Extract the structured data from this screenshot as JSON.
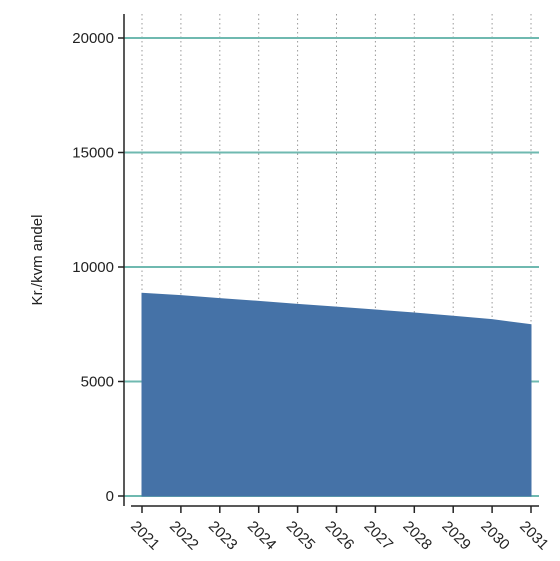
{
  "chart_data": {
    "type": "area",
    "title": "",
    "xlabel": "",
    "ylabel": "Kr./kvm andel",
    "x": [
      2021,
      2022,
      2023,
      2024,
      2025,
      2026,
      2027,
      2028,
      2029,
      2030,
      2031
    ],
    "series": [
      {
        "values": [
          8850,
          8750,
          8620,
          8500,
          8370,
          8250,
          8120,
          7990,
          7850,
          7700,
          7480
        ]
      }
    ],
    "xlim": [
      2021,
      2031
    ],
    "ylim": [
      0,
      20000
    ],
    "yticks": [
      0,
      5000,
      10000,
      15000,
      20000
    ],
    "xticks": [
      2021,
      2022,
      2023,
      2024,
      2025,
      2026,
      2027,
      2028,
      2029,
      2030,
      2031
    ],
    "grid": {
      "horizontal": true,
      "vertical": true,
      "vertical_style": "dotted"
    },
    "legend": "none",
    "colors": {
      "area_fill": "#4572a7",
      "grid_horizontal": "#6fb9b0",
      "grid_vertical": "#999999",
      "axis": "#222222"
    }
  }
}
